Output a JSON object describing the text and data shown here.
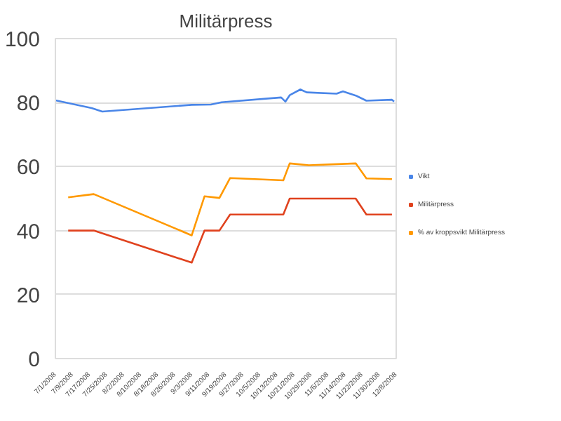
{
  "chart_data": {
    "type": "line",
    "title": "Militärpress",
    "xlim": [
      "2008-07-01",
      "2008-12-08"
    ],
    "xticks": [
      {
        "value": "2008-07-01",
        "label": "7/1/2008"
      },
      {
        "value": "2008-07-09",
        "label": "7/9/2008"
      },
      {
        "value": "2008-07-17",
        "label": "7/17/2008"
      },
      {
        "value": "2008-07-25",
        "label": "7/25/2008"
      },
      {
        "value": "2008-08-02",
        "label": "8/2/2008"
      },
      {
        "value": "2008-08-10",
        "label": "8/10/2008"
      },
      {
        "value": "2008-08-18",
        "label": "8/18/2008"
      },
      {
        "value": "2008-08-26",
        "label": "8/26/2008"
      },
      {
        "value": "2008-09-03",
        "label": "9/3/2008"
      },
      {
        "value": "2008-09-11",
        "label": "9/11/2008"
      },
      {
        "value": "2008-09-19",
        "label": "9/19/2008"
      },
      {
        "value": "2008-09-27",
        "label": "9/27/2008"
      },
      {
        "value": "2008-10-05",
        "label": "10/5/2008"
      },
      {
        "value": "2008-10-13",
        "label": "10/13/2008"
      },
      {
        "value": "2008-10-21",
        "label": "10/21/2008"
      },
      {
        "value": "2008-10-29",
        "label": "10/29/2008"
      },
      {
        "value": "2008-11-06",
        "label": "11/6/2008"
      },
      {
        "value": "2008-11-14",
        "label": "11/14/2008"
      },
      {
        "value": "2008-11-22",
        "label": "11/22/2008"
      },
      {
        "value": "2008-11-30",
        "label": "11/30/2008"
      },
      {
        "value": "2008-12-08",
        "label": "12/8/2008"
      }
    ],
    "ylim": [
      0,
      100
    ],
    "yticks": [
      0,
      20,
      40,
      60,
      80,
      100
    ],
    "grid": "y",
    "legend": "right",
    "series": [
      {
        "name": "Vikt",
        "color": "#4a86e8",
        "x": [
          "2008-07-01",
          "2008-07-18",
          "2008-07-23",
          "2008-09-03",
          "2008-09-12",
          "2008-09-17",
          "2008-10-15",
          "2008-10-17",
          "2008-10-19",
          "2008-10-24",
          "2008-10-27",
          "2008-11-10",
          "2008-11-13",
          "2008-11-19",
          "2008-11-24",
          "2008-12-06",
          "2008-12-07"
        ],
        "values": [
          80.7,
          78.3,
          77.2,
          79.3,
          79.4,
          80.1,
          81.6,
          80.3,
          82.3,
          84.1,
          83.2,
          82.8,
          83.5,
          82.2,
          80.6,
          80.9,
          80.3
        ]
      },
      {
        "name": "Militärpress",
        "color": "#e0421e",
        "x": [
          "2008-07-07",
          "2008-07-19",
          "2008-09-03",
          "2008-09-09",
          "2008-09-16",
          "2008-09-21",
          "2008-10-16",
          "2008-10-19",
          "2008-11-19",
          "2008-11-24",
          "2008-12-06"
        ],
        "values": [
          40,
          40,
          30,
          40,
          40,
          45,
          45,
          50,
          50,
          45,
          45
        ]
      },
      {
        "name": "% av kroppsvikt Militärpress",
        "color": "#ff9900",
        "x": [
          "2008-07-07",
          "2008-07-19",
          "2008-09-03",
          "2008-09-09",
          "2008-09-16",
          "2008-09-21",
          "2008-10-16",
          "2008-10-19",
          "2008-10-28",
          "2008-11-19",
          "2008-11-24",
          "2008-12-06"
        ],
        "values": [
          50.4,
          51.4,
          38.5,
          50.7,
          50.2,
          56.4,
          55.7,
          61.0,
          60.4,
          61.0,
          56.3,
          56.1
        ]
      }
    ]
  }
}
